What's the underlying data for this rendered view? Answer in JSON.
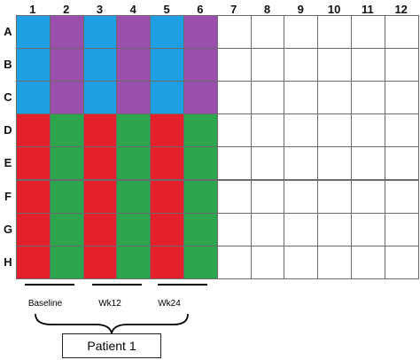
{
  "plate": {
    "columns": [
      "1",
      "2",
      "3",
      "4",
      "5",
      "6",
      "7",
      "8",
      "9",
      "10",
      "11",
      "12"
    ],
    "rows": [
      "A",
      "B",
      "C",
      "D",
      "E",
      "F",
      "G",
      "H"
    ],
    "colors": {
      "blue": "#1f9fe3",
      "purple": "#9b4fad",
      "red": "#e3202b",
      "green": "#2ca64c",
      "empty": "#ffffff"
    },
    "layout_rows_A_to_C": [
      "blue",
      "purple",
      "blue",
      "purple",
      "blue",
      "purple",
      "empty",
      "empty",
      "empty",
      "empty",
      "empty",
      "empty"
    ],
    "layout_rows_D_to_H": [
      "red",
      "green",
      "red",
      "green",
      "red",
      "green",
      "empty",
      "empty",
      "empty",
      "empty",
      "empty",
      "empty"
    ]
  },
  "timepoints": [
    "Baseline",
    "Wk12",
    "Wk24"
  ],
  "patient_label": "Patient 1"
}
